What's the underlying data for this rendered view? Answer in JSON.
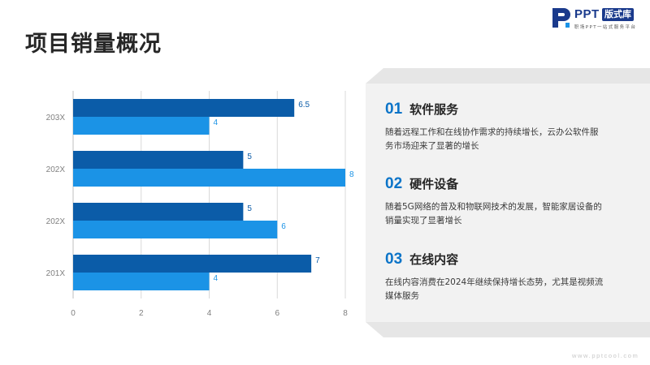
{
  "page": {
    "title": "项目销量概况"
  },
  "logo": {
    "brand": "PPT",
    "badge": "版式库",
    "tagline": "职场PPT一站式服务平台"
  },
  "colors": {
    "dark_bar": "#0b5ca8",
    "light_bar": "#1b93e6",
    "accent": "#0b74c8",
    "panel": "#f2f2f2"
  },
  "chart_data": {
    "type": "bar",
    "orientation": "horizontal",
    "categories": [
      "203X",
      "202X",
      "202X",
      "201X"
    ],
    "series": [
      {
        "values": [
          6.5,
          5,
          5,
          7
        ],
        "color": "#0b5ca8"
      },
      {
        "values": [
          4,
          8,
          6,
          4
        ],
        "color": "#1b93e6"
      }
    ],
    "xlim": [
      0,
      8
    ],
    "xticks": [
      0,
      2,
      4,
      6,
      8
    ],
    "grid": "vertical-lines",
    "data_labels": true
  },
  "items": [
    {
      "num": "01",
      "title": "软件服务",
      "desc": "随着远程工作和在线协作需求的持续增长，云办公软件服务市场迎来了显著的增长"
    },
    {
      "num": "02",
      "title": "硬件设备",
      "desc": "随着5G网络的普及和物联网技术的发展，智能家居设备的销量实现了显著增长"
    },
    {
      "num": "03",
      "title": "在线内容",
      "desc": "在线内容消费在2024年继续保持增长态势，尤其是视频流媒体服务"
    }
  ],
  "footer": {
    "site": "www.pptcool.com"
  }
}
